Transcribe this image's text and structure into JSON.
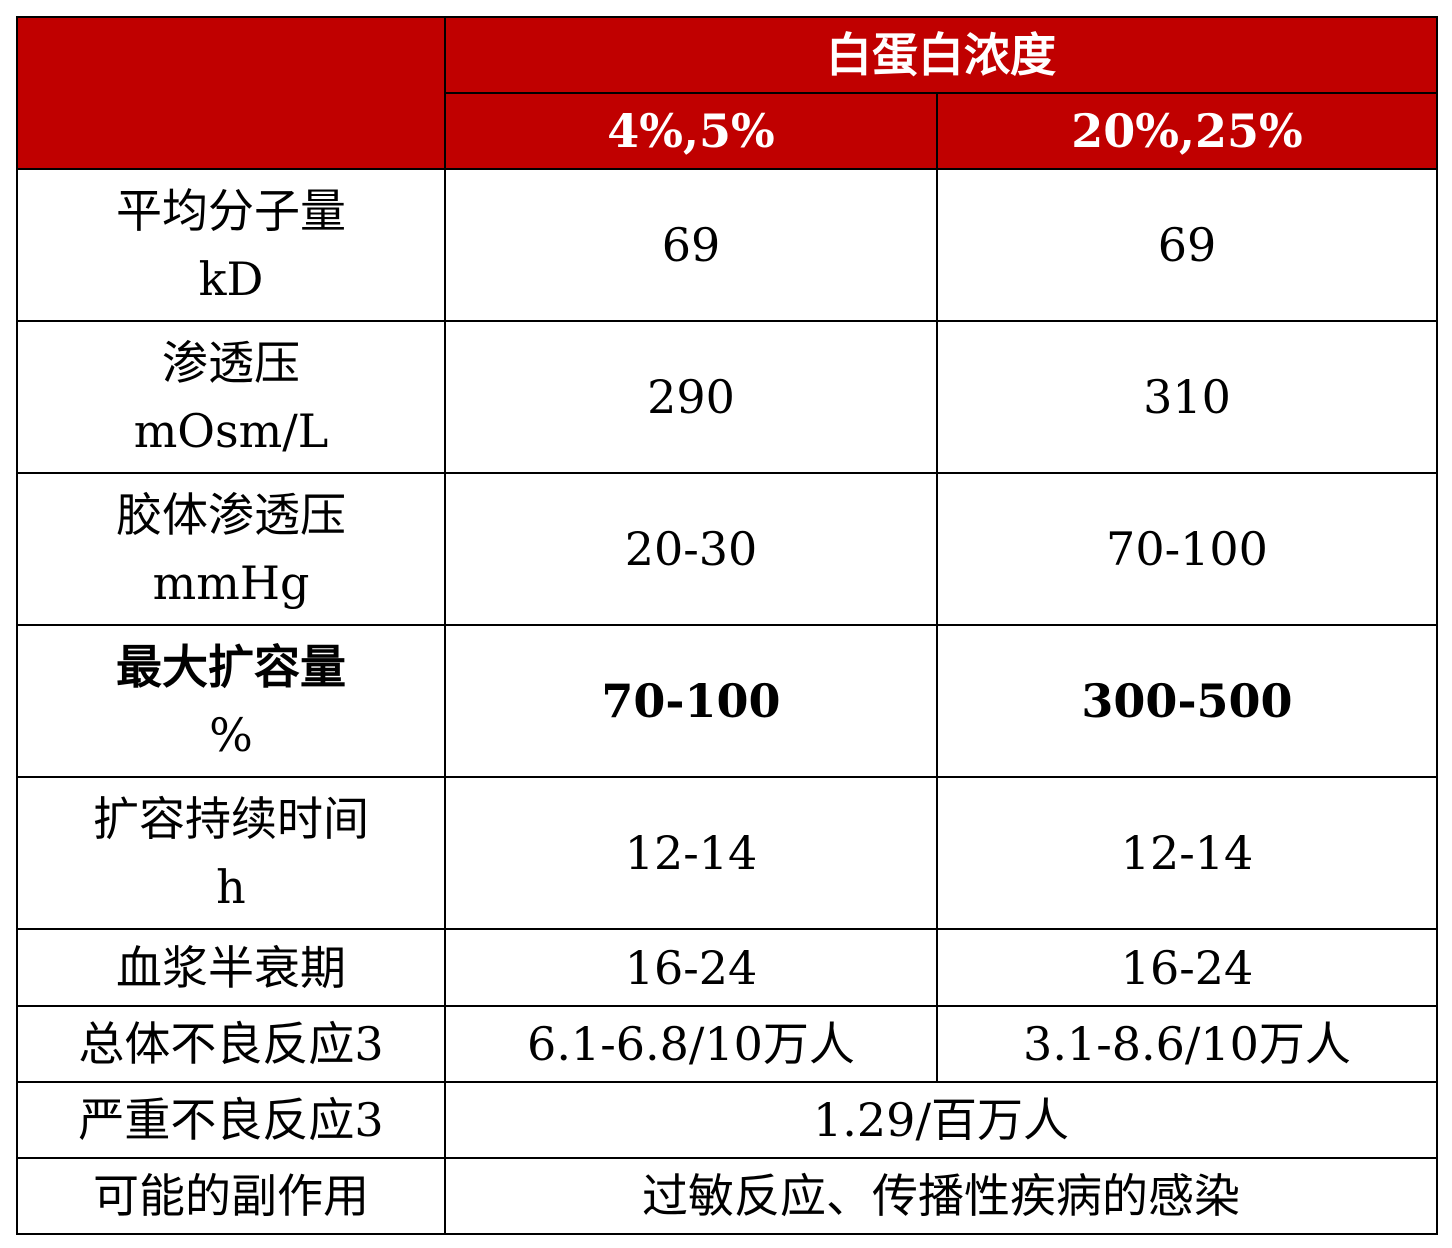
{
  "header": {
    "group_title": "白蛋白浓度",
    "col1": "4%,5%",
    "col2": "20%,25%"
  },
  "rows": [
    {
      "label1": "平均分子量",
      "label2": "kD",
      "v1": "69",
      "v2": "69"
    },
    {
      "label1": "渗透压",
      "label2": "mOsm/L",
      "v1": "290",
      "v2": "310"
    },
    {
      "label1": "胶体渗透压",
      "label2": "mmHg",
      "v1": "20-30",
      "v2": "70-100"
    },
    {
      "label1": "最大扩容量",
      "label2": "%",
      "v1": "70-100",
      "v2": "300-500"
    },
    {
      "label1": "扩容持续时间",
      "label2": "h",
      "v1": "12-14",
      "v2": "12-14"
    },
    {
      "label1": "血浆半衰期",
      "v1": "16-24",
      "v2": "16-24"
    },
    {
      "label1": "总体不良反应3",
      "v1": "6.1-6.8/10万人",
      "v2": "3.1-8.6/10万人"
    },
    {
      "label1": "严重不良反应3",
      "merged": "1.29/百万人"
    },
    {
      "label1": "可能的副作用",
      "merged": "过敏反应、传播性疾病的感染"
    }
  ],
  "colors": {
    "header_bg": "#c00000",
    "header_text": "#ffffff",
    "border": "#000000"
  }
}
